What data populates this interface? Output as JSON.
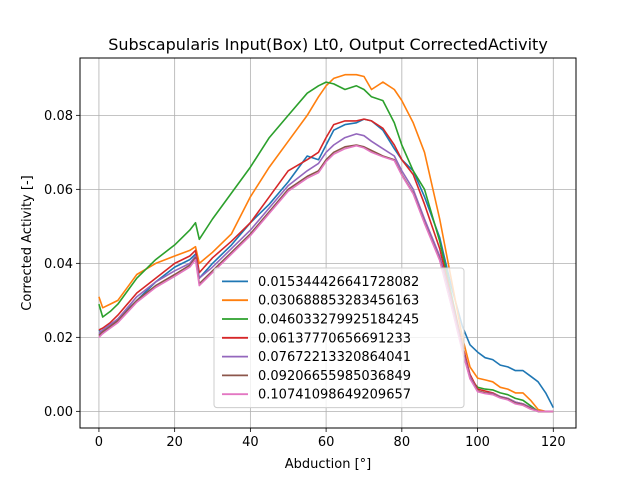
{
  "chart_data": {
    "type": "line",
    "title": "Subscapularis Input(Box) Lt0, Output CorrectedActivity",
    "xlabel": "Abduction [°]",
    "ylabel": "Corrected Activity [-]",
    "xlim": [
      -5,
      126
    ],
    "ylim": [
      -0.0045,
      0.0955
    ],
    "xticks": [
      0,
      20,
      40,
      60,
      80,
      100,
      120
    ],
    "yticks": [
      0.0,
      0.02,
      0.04,
      0.06,
      0.08
    ],
    "ytick_labels": [
      "0.00",
      "0.02",
      "0.04",
      "0.06",
      "0.08"
    ],
    "grid": true,
    "legend_position": "lower center",
    "x": [
      0,
      1,
      3,
      5,
      10,
      15,
      20,
      24,
      25.5,
      26.5,
      30,
      35,
      40,
      45,
      50,
      55,
      58,
      60,
      62,
      65,
      68,
      70,
      72,
      75,
      78,
      80,
      83,
      86,
      90,
      93,
      96,
      98,
      100,
      102,
      104,
      106,
      108,
      110,
      112,
      114,
      116,
      118,
      120
    ],
    "series": [
      {
        "name": "0.015344426641728082",
        "color": "#1f77b4",
        "values": [
          0.022,
          0.021,
          0.023,
          0.025,
          0.03,
          0.035,
          0.039,
          0.041,
          0.0425,
          0.036,
          0.04,
          0.045,
          0.051,
          0.056,
          0.062,
          0.069,
          0.068,
          0.072,
          0.076,
          0.0775,
          0.078,
          0.079,
          0.0785,
          0.076,
          0.071,
          0.068,
          0.065,
          0.058,
          0.047,
          0.034,
          0.023,
          0.018,
          0.016,
          0.0145,
          0.014,
          0.0125,
          0.012,
          0.011,
          0.011,
          0.0095,
          0.008,
          0.005,
          0.001
        ]
      },
      {
        "name": "0.030688853283456163",
        "color": "#ff7f0e",
        "values": [
          0.031,
          0.028,
          0.029,
          0.03,
          0.037,
          0.04,
          0.042,
          0.0435,
          0.0445,
          0.04,
          0.043,
          0.048,
          0.058,
          0.066,
          0.073,
          0.08,
          0.085,
          0.088,
          0.09,
          0.091,
          0.091,
          0.0905,
          0.087,
          0.089,
          0.087,
          0.084,
          0.078,
          0.07,
          0.052,
          0.036,
          0.02,
          0.012,
          0.009,
          0.0085,
          0.008,
          0.0065,
          0.006,
          0.005,
          0.005,
          0.003,
          0.0005,
          0.0,
          0.0
        ]
      },
      {
        "name": "0.046033279925184245",
        "color": "#2ca02c",
        "values": [
          0.029,
          0.0255,
          0.027,
          0.029,
          0.036,
          0.041,
          0.045,
          0.049,
          0.051,
          0.0465,
          0.052,
          0.059,
          0.066,
          0.074,
          0.08,
          0.086,
          0.088,
          0.089,
          0.0885,
          0.087,
          0.088,
          0.087,
          0.085,
          0.084,
          0.078,
          0.072,
          0.065,
          0.06,
          0.046,
          0.032,
          0.018,
          0.009,
          0.0065,
          0.006,
          0.0058,
          0.005,
          0.0045,
          0.0035,
          0.003,
          0.0015,
          0.0,
          0.0,
          0.0
        ]
      },
      {
        "name": "0.06137770656691233",
        "color": "#d62728",
        "values": [
          0.022,
          0.0225,
          0.024,
          0.026,
          0.032,
          0.036,
          0.04,
          0.042,
          0.0435,
          0.0375,
          0.0415,
          0.046,
          0.051,
          0.058,
          0.065,
          0.068,
          0.07,
          0.074,
          0.0775,
          0.0785,
          0.0785,
          0.079,
          0.0785,
          0.0765,
          0.072,
          0.068,
          0.064,
          0.056,
          0.044,
          0.031,
          0.018,
          0.01,
          0.006,
          0.0055,
          0.005,
          0.004,
          0.0035,
          0.0025,
          0.002,
          0.001,
          0.0,
          0.0,
          0.0
        ]
      },
      {
        "name": "0.07672213320864041",
        "color": "#9467bd",
        "values": [
          0.021,
          0.022,
          0.0235,
          0.025,
          0.031,
          0.035,
          0.038,
          0.04,
          0.042,
          0.036,
          0.039,
          0.044,
          0.049,
          0.055,
          0.061,
          0.065,
          0.067,
          0.07,
          0.072,
          0.074,
          0.075,
          0.0745,
          0.073,
          0.071,
          0.069,
          0.065,
          0.06,
          0.052,
          0.042,
          0.03,
          0.017,
          0.0095,
          0.0055,
          0.005,
          0.0048,
          0.004,
          0.0035,
          0.0025,
          0.002,
          0.001,
          0.0,
          0.0,
          0.0
        ]
      },
      {
        "name": "0.09206655985036849",
        "color": "#8c564b",
        "values": [
          0.0205,
          0.0215,
          0.023,
          0.0245,
          0.03,
          0.034,
          0.037,
          0.0395,
          0.0415,
          0.0345,
          0.038,
          0.043,
          0.048,
          0.054,
          0.06,
          0.0635,
          0.065,
          0.068,
          0.07,
          0.0715,
          0.072,
          0.0715,
          0.0705,
          0.069,
          0.068,
          0.064,
          0.059,
          0.051,
          0.041,
          0.029,
          0.0165,
          0.009,
          0.0055,
          0.005,
          0.0046,
          0.0038,
          0.0033,
          0.0022,
          0.0018,
          0.0008,
          0.0,
          0.0,
          0.0
        ]
      },
      {
        "name": "0.10741098649209657",
        "color": "#e377c2",
        "values": [
          0.02,
          0.021,
          0.0225,
          0.024,
          0.0295,
          0.0335,
          0.0365,
          0.039,
          0.041,
          0.034,
          0.0375,
          0.0425,
          0.0475,
          0.0535,
          0.0595,
          0.063,
          0.0645,
          0.0675,
          0.0695,
          0.071,
          0.0718,
          0.0712,
          0.07,
          0.0688,
          0.0678,
          0.0638,
          0.0588,
          0.0508,
          0.0408,
          0.0288,
          0.0162,
          0.0088,
          0.0053,
          0.0048,
          0.0045,
          0.0036,
          0.0031,
          0.002,
          0.0016,
          0.0006,
          0.0,
          0.0,
          0.0
        ]
      }
    ]
  }
}
